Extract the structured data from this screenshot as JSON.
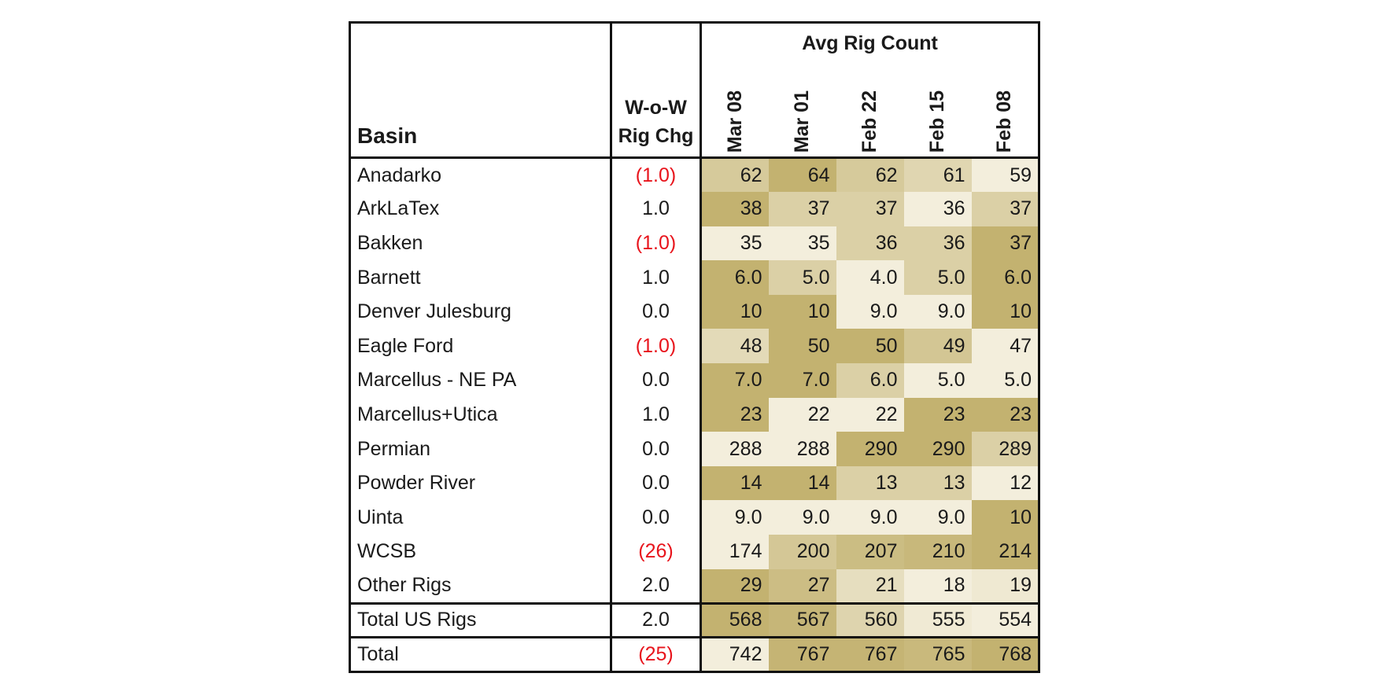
{
  "header": {
    "basin": "Basin",
    "wow_line1": "W-o-W",
    "wow_line2": "Rig Chg",
    "group": "Avg Rig Count",
    "dates": [
      "Mar 08",
      "Mar 01",
      "Feb 22",
      "Feb 15",
      "Feb 08"
    ]
  },
  "colors": {
    "heat_low": "#f3eedc",
    "heat_high": "#c3b270",
    "negative_text": "#e8141c",
    "border": "#111111"
  },
  "chart_data": {
    "type": "table",
    "title": "Avg Rig Count",
    "columns": [
      "Basin",
      "W-o-W Rig Chg",
      "Mar 08",
      "Mar 01",
      "Feb 22",
      "Feb 15",
      "Feb 08"
    ],
    "rows": [
      {
        "basin": "Anadarko",
        "wow": "(1.0)",
        "wow_negative": true,
        "values": [
          "62",
          "64",
          "62",
          "61",
          "59"
        ]
      },
      {
        "basin": "ArkLaTex",
        "wow": "1.0",
        "wow_negative": false,
        "values": [
          "38",
          "37",
          "37",
          "36",
          "37"
        ]
      },
      {
        "basin": "Bakken",
        "wow": "(1.0)",
        "wow_negative": true,
        "values": [
          "35",
          "35",
          "36",
          "36",
          "37"
        ]
      },
      {
        "basin": "Barnett",
        "wow": "1.0",
        "wow_negative": false,
        "values": [
          "6.0",
          "5.0",
          "4.0",
          "5.0",
          "6.0"
        ]
      },
      {
        "basin": "Denver Julesburg",
        "wow": "0.0",
        "wow_negative": false,
        "values": [
          "10",
          "10",
          "9.0",
          "9.0",
          "10"
        ]
      },
      {
        "basin": "Eagle Ford",
        "wow": "(1.0)",
        "wow_negative": true,
        "values": [
          "48",
          "50",
          "50",
          "49",
          "47"
        ]
      },
      {
        "basin": "Marcellus - NE PA",
        "wow": "0.0",
        "wow_negative": false,
        "values": [
          "7.0",
          "7.0",
          "6.0",
          "5.0",
          "5.0"
        ]
      },
      {
        "basin": "Marcellus+Utica",
        "wow": "1.0",
        "wow_negative": false,
        "values": [
          "23",
          "22",
          "22",
          "23",
          "23"
        ]
      },
      {
        "basin": "Permian",
        "wow": "0.0",
        "wow_negative": false,
        "values": [
          "288",
          "288",
          "290",
          "290",
          "289"
        ]
      },
      {
        "basin": "Powder River",
        "wow": "0.0",
        "wow_negative": false,
        "values": [
          "14",
          "14",
          "13",
          "13",
          "12"
        ]
      },
      {
        "basin": "Uinta",
        "wow": "0.0",
        "wow_negative": false,
        "values": [
          "9.0",
          "9.0",
          "9.0",
          "9.0",
          "10"
        ]
      },
      {
        "basin": "WCSB",
        "wow": "(26)",
        "wow_negative": true,
        "values": [
          "174",
          "200",
          "207",
          "210",
          "214"
        ]
      },
      {
        "basin": "Other Rigs",
        "wow": "2.0",
        "wow_negative": false,
        "values": [
          "29",
          "27",
          "21",
          "18",
          "19"
        ]
      }
    ],
    "total_us": {
      "basin": "Total US Rigs",
      "wow": "2.0",
      "wow_negative": false,
      "values": [
        "568",
        "567",
        "560",
        "555",
        "554"
      ]
    },
    "total": {
      "basin": "Total",
      "wow": "(25)",
      "wow_negative": true,
      "values": [
        "742",
        "767",
        "767",
        "765",
        "768"
      ]
    }
  }
}
